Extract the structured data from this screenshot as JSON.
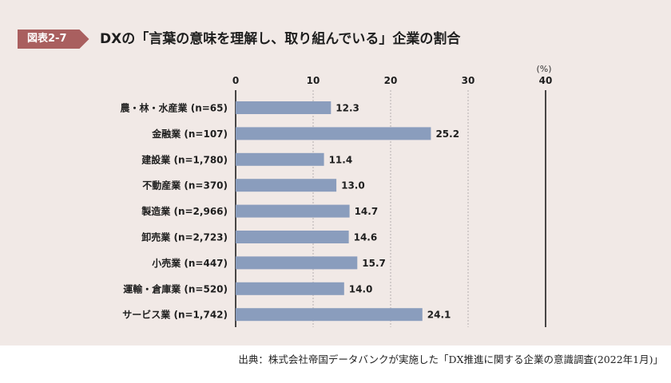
{
  "header": {
    "figure_label": "図表2-7",
    "title": "DXの「言葉の意味を理解し、取り組んでいる」企業の割合"
  },
  "colors": {
    "bar": "#8a9dbd",
    "label_bg": "#a95f5f",
    "panel_bg": "#f1e9e6"
  },
  "chart_data": {
    "type": "bar",
    "orientation": "horizontal",
    "title": "DXの「言葉の意味を理解し、取り組んでいる」企業の割合",
    "unit": "(%)",
    "xlim": [
      0,
      40
    ],
    "xticks": [
      "0",
      "10",
      "20",
      "30",
      "40"
    ],
    "categories": [
      "農・林・水産業 (n=65)",
      "金融業 (n=107)",
      "建設業 (n=1,780)",
      "不動産業 (n=370)",
      "製造業 (n=2,966)",
      "卸売業 (n=2,723)",
      "小売業 (n=447)",
      "運輸・倉庫業 (n=520)",
      "サービス業 (n=1,742)"
    ],
    "values": [
      12.3,
      25.2,
      11.4,
      13.0,
      14.7,
      14.6,
      15.7,
      14.0,
      24.1
    ],
    "value_labels": [
      "12.3",
      "25.2",
      "11.4",
      "13.0",
      "14.7",
      "14.6",
      "15.7",
      "14.0",
      "24.1"
    ]
  },
  "footer": {
    "source": "出典：株式会社帝国データバンクが実施した「DX推進に関する企業の意識調査(2022年1月)」"
  }
}
